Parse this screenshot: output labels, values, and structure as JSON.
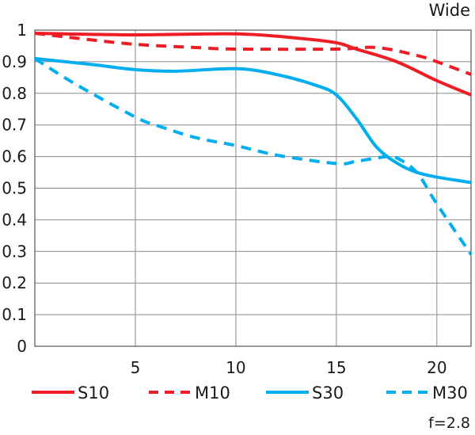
{
  "chart_data": {
    "type": "line",
    "title": "Wide",
    "footnote": "f=2.8",
    "xlabel": "",
    "ylabel": "",
    "xlim": [
      0,
      21.7
    ],
    "ylim": [
      0,
      1
    ],
    "grid": true,
    "legend_position": "bottom",
    "x_ticks": [
      "5",
      "10",
      "15",
      "20"
    ],
    "y_ticks": [
      "0",
      "0.1",
      "0.2",
      "0.3",
      "0.4",
      "0.5",
      "0.6",
      "0.7",
      "0.8",
      "0.9",
      "1"
    ],
    "series": [
      {
        "name": "S10",
        "color": "#ee1c25",
        "dashed": false,
        "x": [
          0,
          5,
          10,
          13,
          15,
          16,
          18,
          20,
          21.7
        ],
        "y": [
          0.99,
          0.985,
          0.988,
          0.975,
          0.96,
          0.94,
          0.9,
          0.84,
          0.795
        ]
      },
      {
        "name": "M10",
        "color": "#ee1c25",
        "dashed": true,
        "x": [
          0,
          2,
          5,
          8,
          10,
          15,
          17,
          19,
          20,
          21.7
        ],
        "y": [
          0.99,
          0.975,
          0.955,
          0.945,
          0.94,
          0.94,
          0.945,
          0.92,
          0.9,
          0.86
        ]
      },
      {
        "name": "S30",
        "color": "#00aeef",
        "dashed": false,
        "x": [
          0,
          3,
          5,
          7,
          10,
          12,
          14,
          15,
          16,
          17,
          18,
          19,
          20,
          21.7
        ],
        "y": [
          0.91,
          0.89,
          0.875,
          0.87,
          0.878,
          0.86,
          0.825,
          0.795,
          0.72,
          0.63,
          0.58,
          0.55,
          0.535,
          0.518
        ]
      },
      {
        "name": "M30",
        "color": "#00aeef",
        "dashed": true,
        "x": [
          0,
          2,
          5,
          6,
          8,
          10,
          12,
          15,
          16,
          17.5,
          18,
          19,
          20,
          21.7
        ],
        "y": [
          0.91,
          0.83,
          0.725,
          0.7,
          0.66,
          0.635,
          0.605,
          0.578,
          0.585,
          0.6,
          0.596,
          0.55,
          0.45,
          0.29
        ]
      }
    ]
  }
}
